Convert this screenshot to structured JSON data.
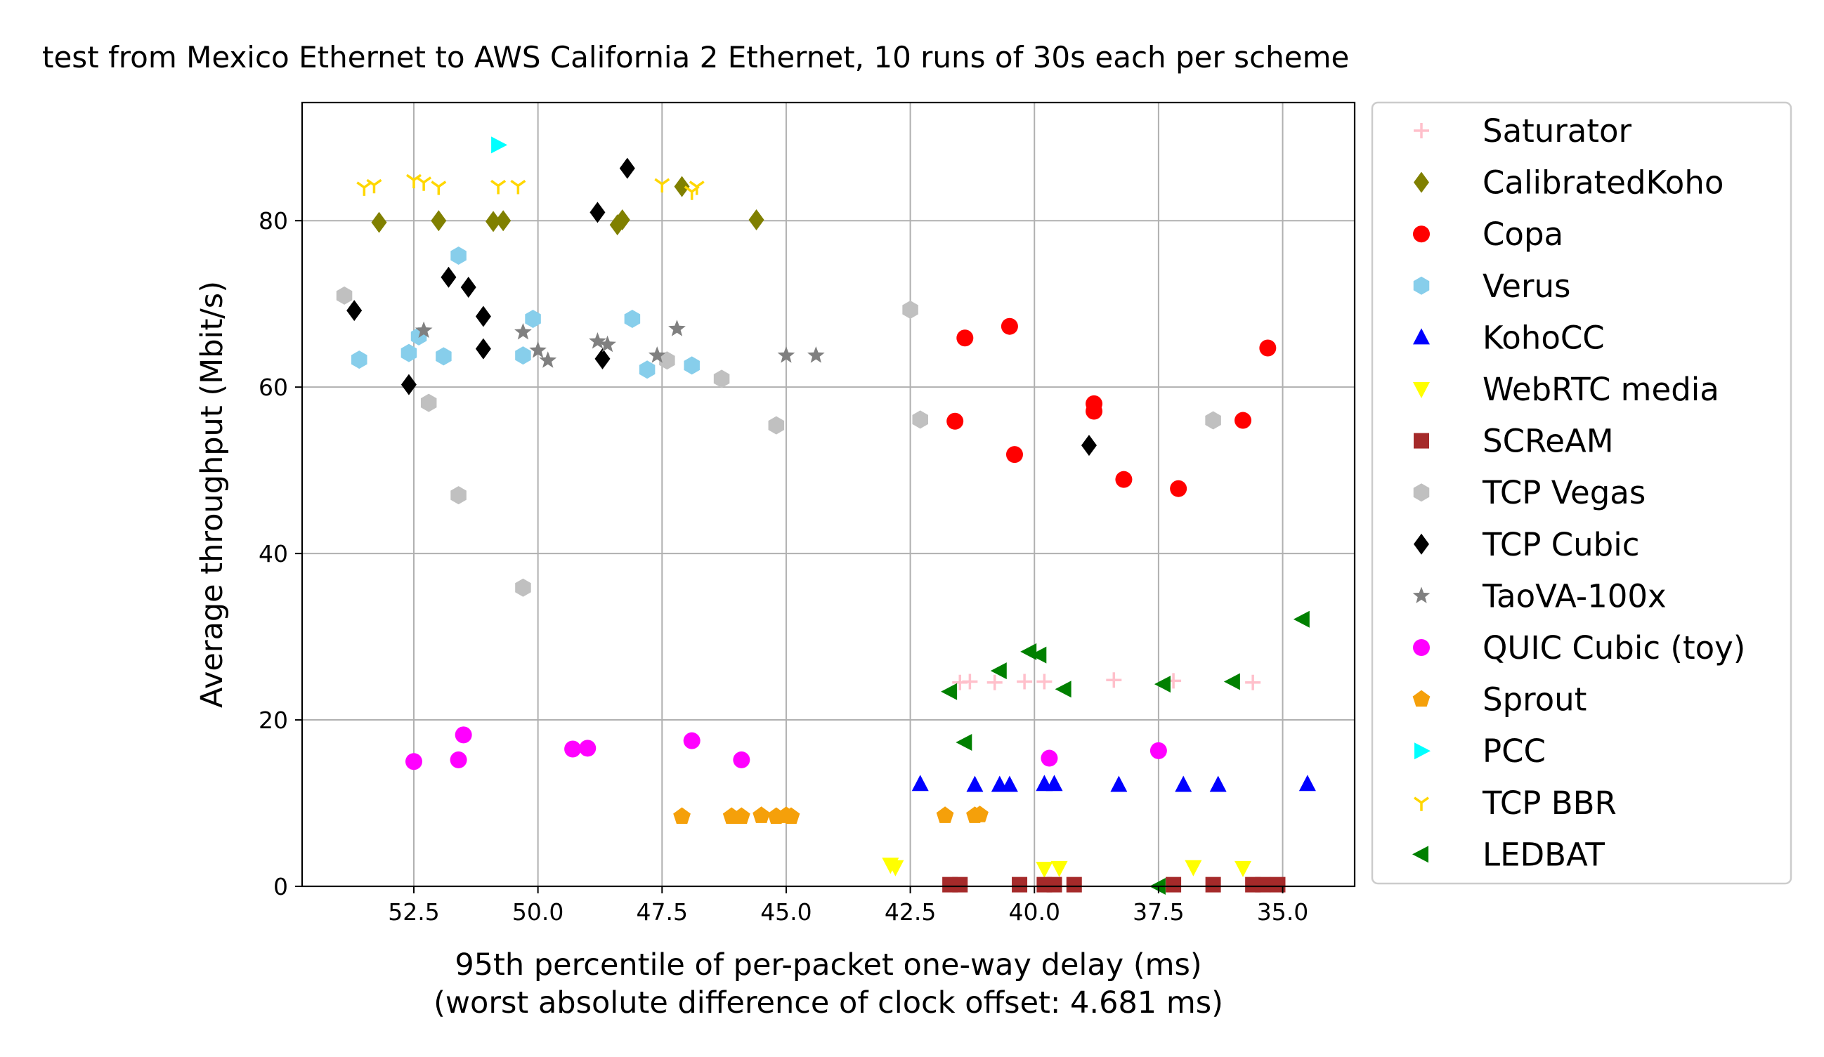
{
  "chart_data": {
    "type": "scatter",
    "title": "test from Mexico Ethernet to AWS California 2 Ethernet, 10 runs of 30s each per scheme",
    "xlabel": "95th percentile of per-packet one-way delay (ms)",
    "xlabel2": "(worst absolute difference of clock offset: 4.681 ms)",
    "ylabel": "Average throughput (Mbit/s)",
    "x_inverted": true,
    "xlim": [
      54.75,
      33.55
    ],
    "ylim": [
      0,
      94.2
    ],
    "x_ticks": [
      52.5,
      50.0,
      47.5,
      45.0,
      42.5,
      40.0,
      37.5,
      35.0
    ],
    "x_tick_labels": [
      "52.5",
      "50.0",
      "47.5",
      "45.0",
      "42.5",
      "40.0",
      "37.5",
      "35.0"
    ],
    "y_ticks": [
      0,
      20,
      40,
      60,
      80
    ],
    "y_tick_labels": [
      "0",
      "20",
      "40",
      "60",
      "80"
    ],
    "grid": true,
    "legend_position": "outside-right",
    "series": [
      {
        "name": "Saturator",
        "color": "#ffc0cb",
        "marker": "plus",
        "points": [
          [
            41.5,
            24.5
          ],
          [
            41.3,
            24.6
          ],
          [
            40.8,
            24.5
          ],
          [
            40.2,
            24.6
          ],
          [
            39.8,
            24.6
          ],
          [
            38.4,
            24.8
          ],
          [
            37.2,
            24.7
          ],
          [
            35.6,
            24.5
          ]
        ]
      },
      {
        "name": "CalibratedKoho",
        "color": "#808000",
        "marker": "diamond",
        "points": [
          [
            53.2,
            79.8
          ],
          [
            52.0,
            80.0
          ],
          [
            50.9,
            79.9
          ],
          [
            50.7,
            80.0
          ],
          [
            48.4,
            79.5
          ],
          [
            48.3,
            80.1
          ],
          [
            47.1,
            84.1
          ],
          [
            45.6,
            80.1
          ]
        ]
      },
      {
        "name": "Copa",
        "color": "#ff0000",
        "marker": "circle",
        "points": [
          [
            41.4,
            65.9
          ],
          [
            40.5,
            67.3
          ],
          [
            41.6,
            55.9
          ],
          [
            40.4,
            51.9
          ],
          [
            38.8,
            58.0
          ],
          [
            38.8,
            57.1
          ],
          [
            38.2,
            48.9
          ],
          [
            37.1,
            47.8
          ],
          [
            35.8,
            56.0
          ],
          [
            35.3,
            64.7
          ]
        ]
      },
      {
        "name": "Verus",
        "color": "#87ceeb",
        "marker": "hexagon",
        "points": [
          [
            51.6,
            75.8
          ],
          [
            50.1,
            68.2
          ],
          [
            48.1,
            68.2
          ],
          [
            52.4,
            66.1
          ],
          [
            53.6,
            63.3
          ],
          [
            52.6,
            64.1
          ],
          [
            51.9,
            63.7
          ],
          [
            50.3,
            63.8
          ],
          [
            47.8,
            62.1
          ],
          [
            46.9,
            62.6
          ]
        ]
      },
      {
        "name": "KohoCC",
        "color": "#0000ff",
        "marker": "triangle-up",
        "points": [
          [
            42.3,
            12.3
          ],
          [
            41.2,
            12.2
          ],
          [
            40.7,
            12.2
          ],
          [
            40.5,
            12.2
          ],
          [
            39.8,
            12.3
          ],
          [
            39.6,
            12.3
          ],
          [
            38.3,
            12.2
          ],
          [
            37.0,
            12.2
          ],
          [
            36.3,
            12.2
          ],
          [
            34.5,
            12.3
          ]
        ]
      },
      {
        "name": "WebRTC media",
        "color": "#ffff00",
        "marker": "triangle-down",
        "points": [
          [
            42.9,
            2.6
          ],
          [
            42.8,
            2.3
          ],
          [
            39.8,
            2.1
          ],
          [
            39.5,
            2.2
          ],
          [
            36.8,
            2.3
          ],
          [
            35.8,
            2.2
          ]
        ]
      },
      {
        "name": "SCReAM",
        "color": "#a52a2a",
        "marker": "square",
        "points": [
          [
            41.7,
            0.2
          ],
          [
            41.5,
            0.2
          ],
          [
            40.3,
            0.2
          ],
          [
            39.8,
            0.2
          ],
          [
            39.6,
            0.2
          ],
          [
            39.2,
            0.2
          ],
          [
            37.2,
            0.2
          ],
          [
            36.4,
            0.2
          ],
          [
            35.6,
            0.2
          ],
          [
            35.4,
            0.2
          ],
          [
            35.1,
            0.2
          ]
        ]
      },
      {
        "name": "TCP Vegas",
        "color": "#c0c0c0",
        "marker": "hexagon",
        "points": [
          [
            53.9,
            71.0
          ],
          [
            52.2,
            58.1
          ],
          [
            51.6,
            47.0
          ],
          [
            50.3,
            35.9
          ],
          [
            47.4,
            63.2
          ],
          [
            46.3,
            61.0
          ],
          [
            45.2,
            55.4
          ],
          [
            42.5,
            69.3
          ],
          [
            42.3,
            56.1
          ],
          [
            36.4,
            56.0
          ]
        ]
      },
      {
        "name": "TCP Cubic",
        "color": "#000000",
        "marker": "diamond",
        "points": [
          [
            48.2,
            86.3
          ],
          [
            48.8,
            81.0
          ],
          [
            53.7,
            69.2
          ],
          [
            51.8,
            73.2
          ],
          [
            51.4,
            72.0
          ],
          [
            51.1,
            68.5
          ],
          [
            51.1,
            64.6
          ],
          [
            48.7,
            63.4
          ],
          [
            52.6,
            60.3
          ],
          [
            38.9,
            53.0
          ]
        ]
      },
      {
        "name": "TaoVA-100x",
        "color": "#808080",
        "marker": "star",
        "points": [
          [
            52.3,
            66.8
          ],
          [
            50.3,
            66.6
          ],
          [
            50.0,
            64.4
          ],
          [
            49.8,
            63.2
          ],
          [
            48.8,
            65.5
          ],
          [
            48.6,
            65.1
          ],
          [
            47.6,
            63.8
          ],
          [
            47.2,
            67.0
          ],
          [
            45.0,
            63.8
          ],
          [
            44.4,
            63.8
          ]
        ]
      },
      {
        "name": "QUIC Cubic (toy)",
        "color": "#ff00ff",
        "marker": "circle",
        "points": [
          [
            52.5,
            15.0
          ],
          [
            51.5,
            18.2
          ],
          [
            51.6,
            15.2
          ],
          [
            49.3,
            16.5
          ],
          [
            49.0,
            16.6
          ],
          [
            46.9,
            17.5
          ],
          [
            45.9,
            15.2
          ],
          [
            39.7,
            15.4
          ],
          [
            37.5,
            16.3
          ]
        ]
      },
      {
        "name": "Sprout",
        "color": "#f5a00a",
        "marker": "pentagon",
        "points": [
          [
            47.1,
            8.4
          ],
          [
            46.1,
            8.4
          ],
          [
            45.9,
            8.4
          ],
          [
            45.5,
            8.5
          ],
          [
            45.2,
            8.4
          ],
          [
            45.0,
            8.5
          ],
          [
            44.9,
            8.4
          ],
          [
            41.8,
            8.5
          ],
          [
            41.2,
            8.5
          ],
          [
            41.1,
            8.6
          ]
        ]
      },
      {
        "name": "PCC",
        "color": "#00ffff",
        "marker": "triangle-right",
        "points": [
          [
            50.8,
            89.1
          ]
        ]
      },
      {
        "name": "TCP BBR",
        "color": "#ffd700",
        "marker": "tri-down",
        "points": [
          [
            53.5,
            84.0
          ],
          [
            53.3,
            84.3
          ],
          [
            52.5,
            84.9
          ],
          [
            52.3,
            84.6
          ],
          [
            52.0,
            84.1
          ],
          [
            50.8,
            84.2
          ],
          [
            50.4,
            84.2
          ],
          [
            47.5,
            84.4
          ],
          [
            46.8,
            84.1
          ],
          [
            46.9,
            83.5
          ]
        ]
      },
      {
        "name": "LEDBAT",
        "color": "#008000",
        "marker": "triangle-left",
        "points": [
          [
            34.6,
            32.1
          ],
          [
            40.1,
            28.2
          ],
          [
            39.9,
            27.8
          ],
          [
            40.7,
            25.9
          ],
          [
            39.4,
            23.7
          ],
          [
            41.7,
            23.4
          ],
          [
            37.4,
            24.3
          ],
          [
            36.0,
            24.6
          ],
          [
            41.4,
            17.3
          ],
          [
            37.5,
            0.0
          ]
        ]
      }
    ]
  }
}
